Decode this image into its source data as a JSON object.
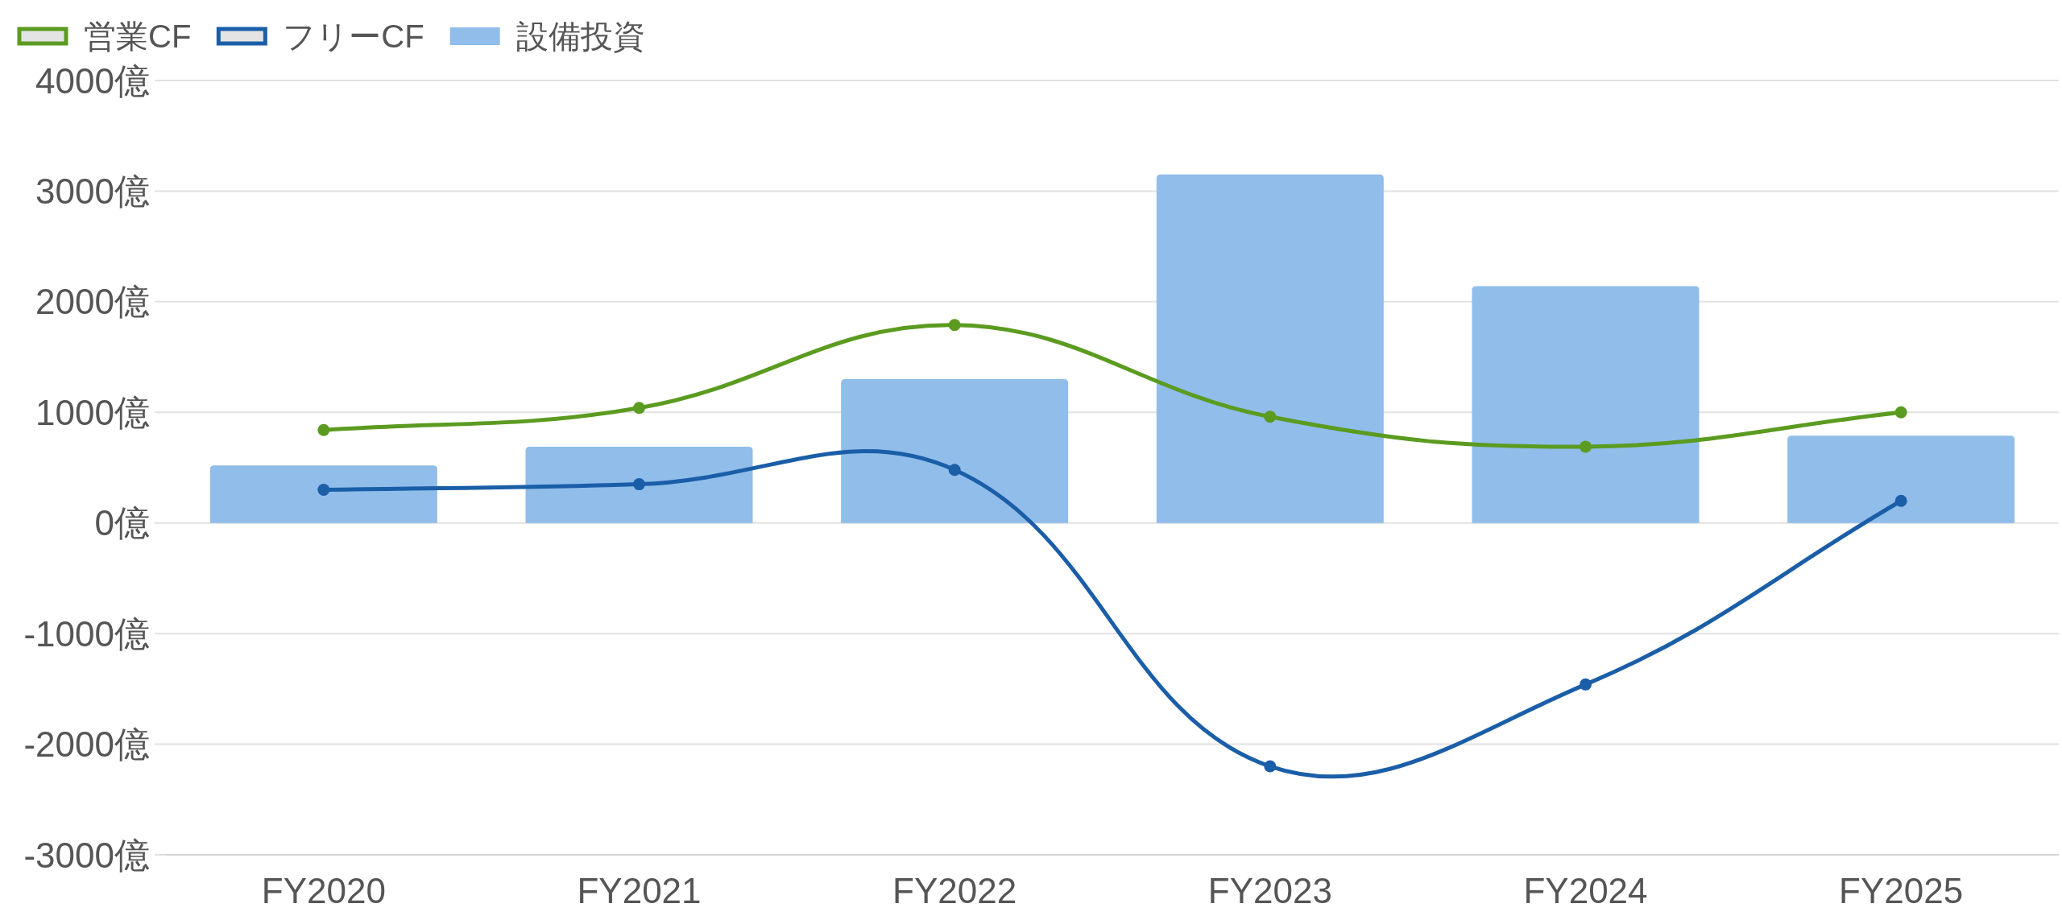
{
  "chart_data": {
    "type": "bar",
    "categories": [
      "FY2020",
      "FY2021",
      "FY2022",
      "FY2023",
      "FY2024",
      "FY2025"
    ],
    "series": [
      {
        "name": "営業CF",
        "type": "line",
        "color": "#5b9b20",
        "values": [
          840,
          1040,
          1790,
          960,
          690,
          1000
        ]
      },
      {
        "name": "フリーCF",
        "type": "line",
        "color": "#1b5ea8",
        "values": [
          300,
          350,
          480,
          -2200,
          -1460,
          200
        ]
      },
      {
        "name": "設備投資",
        "type": "bar",
        "color": "#90bdea",
        "values": [
          520,
          690,
          1300,
          3150,
          2140,
          790
        ]
      }
    ],
    "ylim": [
      -3000,
      4000
    ],
    "yticks": [
      {
        "value": -3000,
        "label": "-3000億"
      },
      {
        "value": -2000,
        "label": "-2000億"
      },
      {
        "value": -1000,
        "label": "-1000億"
      },
      {
        "value": 0,
        "label": "0億"
      },
      {
        "value": 1000,
        "label": "1000億"
      },
      {
        "value": 2000,
        "label": "2000億"
      },
      {
        "value": 3000,
        "label": "3000億"
      },
      {
        "value": 4000,
        "label": "4000億"
      }
    ],
    "grid": "y",
    "legend": "top left",
    "marker": "circle"
  }
}
